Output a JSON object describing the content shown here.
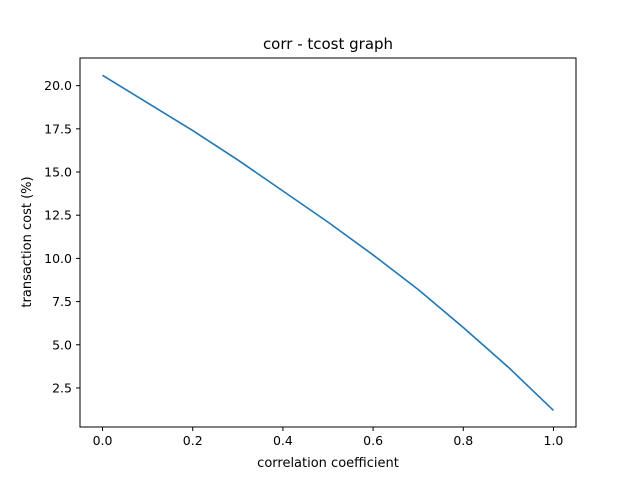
{
  "chart_data": {
    "type": "line",
    "title": "corr - tcost graph",
    "xlabel": "correlation coefficient",
    "ylabel": "transaction cost (%)",
    "xlim": [
      -0.05,
      1.05
    ],
    "ylim": [
      0.24,
      21.6
    ],
    "x_ticks": [
      0.0,
      0.2,
      0.4,
      0.6,
      0.8,
      1.0
    ],
    "x_tick_labels": [
      "0.0",
      "0.2",
      "0.4",
      "0.6",
      "0.8",
      "1.0"
    ],
    "y_ticks": [
      2.5,
      5.0,
      7.5,
      10.0,
      12.5,
      15.0,
      17.5,
      20.0
    ],
    "y_tick_labels": [
      "2.5",
      "5.0",
      "7.5",
      "10.0",
      "12.5",
      "15.0",
      "17.5",
      "20.0"
    ],
    "grid": false,
    "series": [
      {
        "color": "#1f77b4",
        "x": [
          0.0,
          0.1,
          0.2,
          0.3,
          0.4,
          0.5,
          0.6,
          0.7,
          0.8,
          0.9,
          1.0
        ],
        "y": [
          20.6,
          19.0,
          17.4,
          15.7,
          13.9,
          12.1,
          10.2,
          8.2,
          6.0,
          3.7,
          1.2
        ]
      }
    ]
  }
}
